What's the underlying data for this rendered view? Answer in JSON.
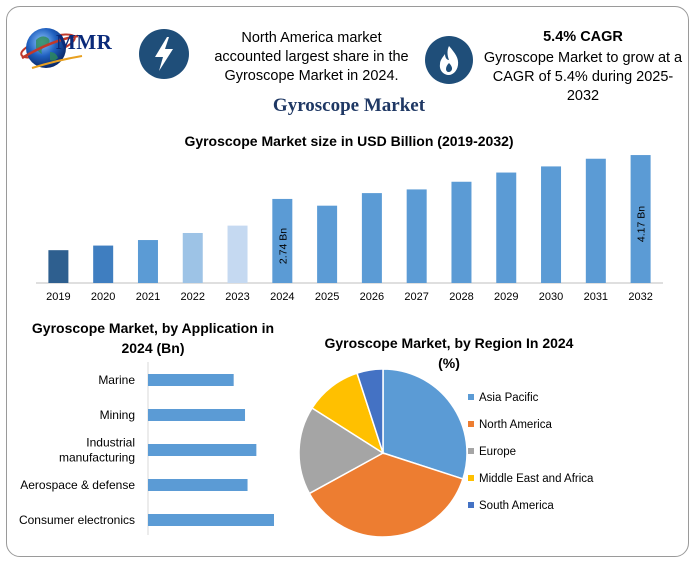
{
  "brand": {
    "name": "MMR"
  },
  "facts": [
    {
      "icon": "lightning-bolt-icon",
      "text_lines": [
        "North America market",
        "accounted largest share in the",
        "Gyroscope Market in 2024."
      ]
    },
    {
      "icon": "flame-icon",
      "headline": "5.4% CAGR",
      "text_lines": [
        "Gyroscope Market to grow at a",
        "CAGR of 5.4% during 2025-2032"
      ]
    }
  ],
  "title": "Gyroscope Market",
  "colors": {
    "bar_primary": "#5b9bd5",
    "bar_dark": "#2e5f8f",
    "bar_mid": "#3f7ec0",
    "bar_light": "#9dc3e6",
    "bar_pale": "#c5d9f1",
    "title_navy": "#1f3864",
    "badge": "#1f4e79"
  },
  "chart_data": [
    {
      "type": "bar",
      "title": "Gyroscope Market size in USD Billion (2019-2032)",
      "categories": [
        "2019",
        "2020",
        "2021",
        "2022",
        "2023",
        "2024",
        "2025",
        "2026",
        "2027",
        "2028",
        "2029",
        "2030",
        "2031",
        "2032"
      ],
      "values": [
        1.07,
        1.22,
        1.4,
        1.63,
        1.87,
        2.74,
        2.52,
        2.93,
        3.05,
        3.3,
        3.6,
        3.8,
        4.05,
        4.17
      ],
      "bar_colors": [
        "#2e5f8f",
        "#3f7ec0",
        "#5b9bd5",
        "#9dc3e6",
        "#c5d9f1",
        "#5b9bd5",
        "#5b9bd5",
        "#5b9bd5",
        "#5b9bd5",
        "#5b9bd5",
        "#5b9bd5",
        "#5b9bd5",
        "#5b9bd5",
        "#5b9bd5"
      ],
      "data_labels": [
        {
          "category": "2024",
          "label": "2.74 Bn"
        },
        {
          "category": "2032",
          "label": "4.17 Bn"
        }
      ],
      "ylim": [
        0,
        4.4
      ],
      "grid": false
    },
    {
      "type": "bar",
      "orientation": "horizontal",
      "title_lines": [
        "Gyroscope Market, by Application in",
        "2024 (Bn)"
      ],
      "categories": [
        {
          "label_lines": [
            "Marine"
          ]
        },
        {
          "label_lines": [
            "Mining"
          ]
        },
        {
          "label_lines": [
            "Industrial",
            "manufacturing"
          ]
        },
        {
          "label_lines": [
            "Aerospace & defense"
          ]
        },
        {
          "label_lines": [
            "Consumer electronics"
          ]
        }
      ],
      "values": [
        0.68,
        0.77,
        0.86,
        0.79,
        1.0
      ],
      "xlim": [
        0,
        1.0
      ],
      "color": "#5b9bd5",
      "grid": false
    },
    {
      "type": "pie",
      "title_lines": [
        "Gyroscope Market, by Region In 2024",
        "(%)"
      ],
      "slices": [
        {
          "name": "Asia Pacific",
          "value": 30,
          "color": "#5b9bd5"
        },
        {
          "name": "North America",
          "value": 37,
          "color": "#ed7d31"
        },
        {
          "name": "Europe",
          "value": 17,
          "color": "#a5a5a5"
        },
        {
          "name": "Middle East and Africa",
          "value": 11,
          "color": "#ffc000"
        },
        {
          "name": "South America",
          "value": 5,
          "color": "#4472c4"
        }
      ],
      "legend_position": "right"
    }
  ]
}
